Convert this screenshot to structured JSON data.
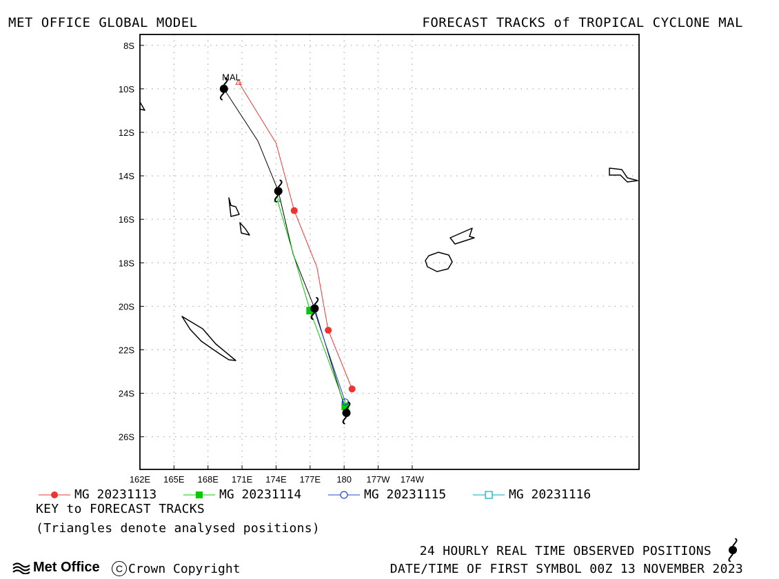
{
  "header": {
    "left": "MET OFFICE GLOBAL MODEL",
    "right": "FORECAST TRACKS of TROPICAL CYCLONE MAL"
  },
  "map": {
    "lat_range": [
      -27.5,
      -7.5
    ],
    "lon_range": [
      162,
      206
    ],
    "lat_labels": [
      "8S",
      "10S",
      "12S",
      "14S",
      "16S",
      "18S",
      "20S",
      "22S",
      "24S",
      "26S"
    ],
    "lon_labels": [
      "162E",
      "165E",
      "168E",
      "171E",
      "174E",
      "177E",
      "180",
      "177W",
      "174W"
    ],
    "grid": true,
    "storm_label": "MAL"
  },
  "observed_positions": [
    {
      "lat": -10.0,
      "lon": 169.4
    },
    {
      "lat": -14.7,
      "lon": 174.2
    },
    {
      "lat": -20.1,
      "lon": 177.4
    },
    {
      "lat": -24.9,
      "lon": 180.2
    }
  ],
  "observed_track": [
    {
      "lat": -10.0,
      "lon": 169.4
    },
    {
      "lat": -12.4,
      "lon": 172.4
    },
    {
      "lat": -14.7,
      "lon": 174.2
    },
    {
      "lat": -17.6,
      "lon": 175.5
    },
    {
      "lat": -20.1,
      "lon": 177.4
    },
    {
      "lat": -24.9,
      "lon": 180.2
    }
  ],
  "forecast_tracks": [
    {
      "name": "MG 20231113",
      "color": "#ee3333",
      "marker": "filled-circle",
      "analysed": {
        "lat": -9.7,
        "lon": 170.7
      },
      "points": [
        {
          "lat": -9.7,
          "lon": 170.7
        },
        {
          "lat": -12.5,
          "lon": 174.0
        },
        {
          "lat": -15.6,
          "lon": 175.6
        },
        {
          "lat": -18.2,
          "lon": 177.6
        },
        {
          "lat": -21.1,
          "lon": 178.6
        },
        {
          "lat": -23.8,
          "lon": 180.7
        }
      ],
      "markers": [
        {
          "lat": -15.6,
          "lon": 175.6
        },
        {
          "lat": -21.1,
          "lon": 178.6
        },
        {
          "lat": -23.8,
          "lon": 180.7
        }
      ]
    },
    {
      "name": "MG 20231114",
      "color": "#00cc00",
      "marker": "filled-square",
      "analysed": {
        "lat": -15.1,
        "lon": 174.1
      },
      "points": [
        {
          "lat": -15.1,
          "lon": 174.1
        },
        {
          "lat": -20.2,
          "lon": 177.0
        },
        {
          "lat": -24.6,
          "lon": 180.1
        }
      ],
      "markers": [
        {
          "lat": -20.2,
          "lon": 177.0
        },
        {
          "lat": -24.6,
          "lon": 180.1
        }
      ]
    },
    {
      "name": "MG 20231115",
      "color": "#2244cc",
      "marker": "open-circle",
      "analysed": {
        "lat": -20.1,
        "lon": 177.3
      },
      "points": [
        {
          "lat": -20.1,
          "lon": 177.3
        },
        {
          "lat": -24.4,
          "lon": 180.1
        }
      ],
      "markers": [
        {
          "lat": -24.4,
          "lon": 180.1
        }
      ]
    },
    {
      "name": "MG 20231116",
      "color": "#00aabb",
      "marker": "open-square",
      "analysed": {
        "lat": -24.8,
        "lon": 180.1
      },
      "points": [],
      "markers": []
    }
  ],
  "key": {
    "title": "KEY to FORECAST TRACKS",
    "note": "(Triangles denote analysed positions)"
  },
  "footer": {
    "observed_label": "24 HOURLY REAL TIME OBSERVED POSITIONS",
    "first_symbol": "DATE/TIME OF FIRST SYMBOL 00Z 13 NOVEMBER 2023",
    "logo_text": "Met Office",
    "copyright": "Crown Copyright"
  }
}
